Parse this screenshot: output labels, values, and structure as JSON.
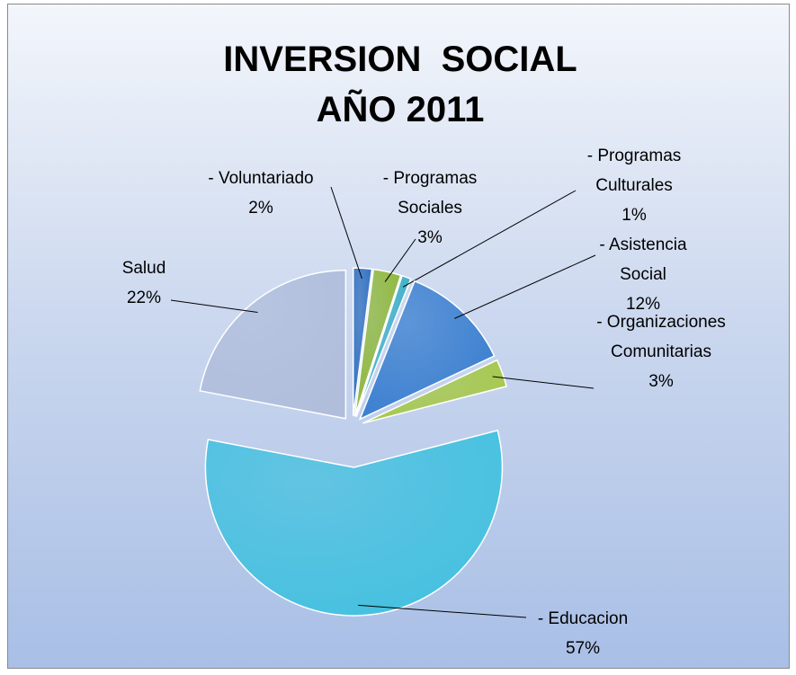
{
  "chart_data": {
    "type": "pie",
    "title": "INVERSION  SOCIAL AÑO 2011",
    "categories": [
      "- Voluntariado",
      "- Programas Sociales",
      "- Programas Culturales",
      "- Asistencia Social",
      "- Organizaciones Comunitarias",
      "- Educacion",
      "Salud"
    ],
    "values": [
      2,
      3,
      1,
      12,
      3,
      57,
      22
    ],
    "value_labels": [
      "2%",
      "3%",
      "1%",
      "12%",
      "3%",
      "57%",
      "22%"
    ],
    "colors": [
      "#2f6fbf",
      "#8fb83a",
      "#3fb0c9",
      "#3a7fd0",
      "#a6c84a",
      "#45c1e0",
      "#b0bedc"
    ]
  }
}
